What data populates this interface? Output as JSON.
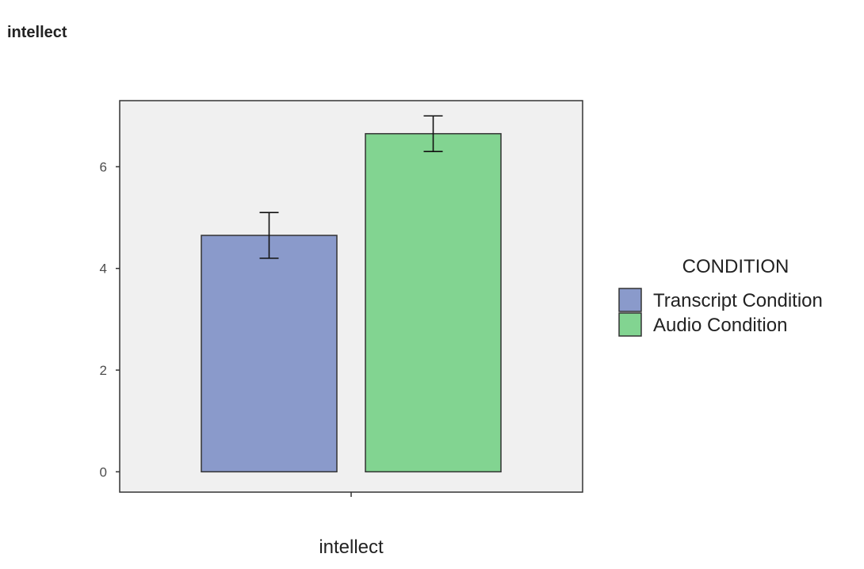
{
  "page": {
    "heading": "intellect"
  },
  "chart_data": {
    "type": "bar",
    "categories": [
      "intellect"
    ],
    "series": [
      {
        "name": "Transcript Condition",
        "values": [
          4.65
        ],
        "error": [
          [
            4.2,
            5.1
          ]
        ],
        "color": "#8a9acb"
      },
      {
        "name": "Audio Condition",
        "values": [
          6.65
        ],
        "error": [
          [
            6.3,
            7.0
          ]
        ],
        "color": "#82d491"
      }
    ],
    "xlabel": "intellect",
    "ylabel": "",
    "ylim": [
      -0.4,
      7.3
    ],
    "yticks": [
      0,
      2,
      4,
      6
    ],
    "legend_title": "CONDITION",
    "legend_position": "right",
    "panel_background": "#f0f0f0",
    "grid": false
  }
}
